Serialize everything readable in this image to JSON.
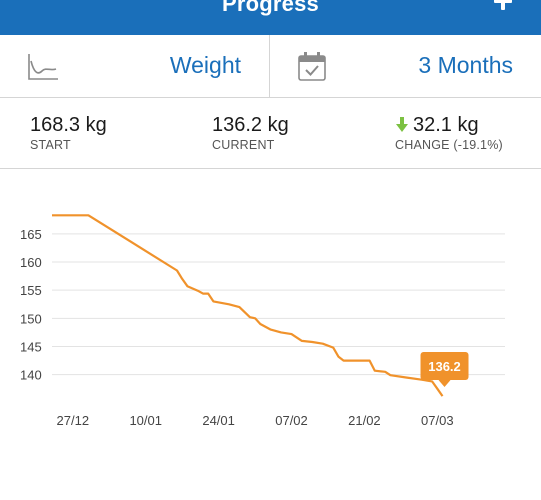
{
  "header": {
    "title": "Progress",
    "add_icon": "plus-icon"
  },
  "selectors": {
    "metric": {
      "icon": "trend-chart-icon",
      "label": "Weight"
    },
    "range": {
      "icon": "calendar-icon",
      "label": "3 Months"
    }
  },
  "stats": {
    "start": {
      "value": "168.3 kg",
      "label": "START"
    },
    "current": {
      "value": "136.2 kg",
      "label": "CURRENT"
    },
    "change": {
      "value": "32.1 kg",
      "label": "CHANGE (-19.1%)",
      "icon": "arrow-down-icon",
      "icon_color": "#7cc142"
    }
  },
  "colors": {
    "accent": "#1a6fba",
    "series": "#f0922b",
    "down_arrow": "#7cc142"
  },
  "chart_data": {
    "type": "line",
    "title": "",
    "xlabel": "",
    "ylabel": "",
    "y_ticks": [
      140,
      145,
      150,
      155,
      160,
      165
    ],
    "x_tick_labels": [
      "27/12",
      "10/01",
      "24/01",
      "07/02",
      "21/02",
      "07/03"
    ],
    "x_tick_days": [
      0,
      14,
      28,
      42,
      56,
      70
    ],
    "xlim_days": [
      -4,
      83
    ],
    "ylim": [
      135.5,
      170.3
    ],
    "grid": true,
    "series": [
      {
        "name": "",
        "points": [
          [
            -4,
            168.3
          ],
          [
            3,
            168.3
          ],
          [
            20,
            158.5
          ],
          [
            21,
            157.0
          ],
          [
            22,
            155.7
          ],
          [
            24,
            154.9
          ],
          [
            25,
            154.4
          ],
          [
            26,
            154.4
          ],
          [
            27,
            153.0
          ],
          [
            30,
            152.5
          ],
          [
            32,
            152.0
          ],
          [
            34,
            150.2
          ],
          [
            35,
            150.0
          ],
          [
            36,
            149.0
          ],
          [
            38,
            148.0
          ],
          [
            40,
            147.5
          ],
          [
            42,
            147.2
          ],
          [
            44,
            146.0
          ],
          [
            46,
            145.8
          ],
          [
            48,
            145.5
          ],
          [
            50,
            144.8
          ],
          [
            51,
            143.2
          ],
          [
            52,
            142.5
          ],
          [
            57,
            142.5
          ],
          [
            58,
            140.7
          ],
          [
            60,
            140.5
          ],
          [
            61,
            139.9
          ],
          [
            64,
            139.5
          ],
          [
            67,
            139.1
          ],
          [
            69,
            138.8
          ],
          [
            70,
            137.5
          ],
          [
            71,
            136.2
          ]
        ]
      }
    ],
    "callout": {
      "text": "136.2",
      "day": 71,
      "value": 136.2
    }
  }
}
